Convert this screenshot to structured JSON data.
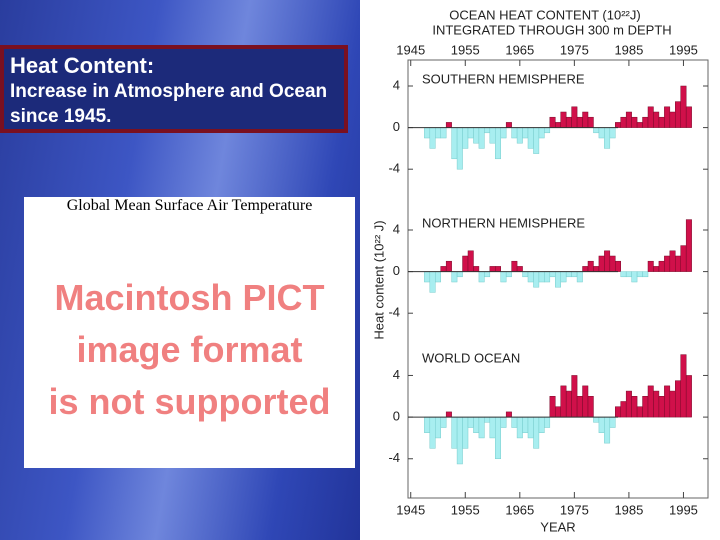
{
  "slide": {
    "heading": "Heat Content:",
    "subheading": "Increase in Atmosphere and Ocean since 1945.",
    "image_title": "Global Mean Surface Air Temperature",
    "placeholder": [
      "Macintosh PICT",
      "image format",
      "is not supported"
    ]
  },
  "chart_data": [
    {
      "type": "bar",
      "title": "OCEAN HEAT CONTENT (10²²J)",
      "subtitle": "INTEGRATED THROUGH 300 m DEPTH",
      "annotation": "SOUTHERN HEMISPHERE",
      "pos_color": "#d0104a",
      "neg_color": "#a8eef0",
      "x": [
        1948,
        1949,
        1950,
        1951,
        1952,
        1953,
        1954,
        1955,
        1956,
        1957,
        1958,
        1959,
        1960,
        1961,
        1962,
        1963,
        1964,
        1965,
        1966,
        1967,
        1968,
        1969,
        1970,
        1971,
        1972,
        1973,
        1974,
        1975,
        1976,
        1977,
        1978,
        1979,
        1980,
        1981,
        1982,
        1983,
        1984,
        1985,
        1986,
        1987,
        1988,
        1989,
        1990,
        1991,
        1992,
        1993,
        1994,
        1995,
        1996
      ],
      "values": [
        -1,
        -2,
        -1,
        -1,
        0.5,
        -3,
        -4,
        -2,
        -1,
        -1.5,
        -2,
        -0.5,
        -1.5,
        -3,
        -1,
        0.5,
        -1,
        -1.5,
        -1,
        -2,
        -2.5,
        -1,
        -0.5,
        1,
        0.5,
        1.5,
        1,
        2,
        1,
        1.5,
        1,
        -0.5,
        -1,
        -2,
        -1,
        0.5,
        1,
        1.5,
        1,
        0.5,
        1,
        2,
        1.5,
        1,
        2,
        1.5,
        2.5,
        4,
        2
      ],
      "xlim": [
        1944.5,
        1999.5
      ],
      "xticks": [
        1945,
        1955,
        1965,
        1975,
        1985,
        1995
      ],
      "ylim": [
        -6,
        6.5
      ],
      "yticks": [
        -4,
        0,
        4
      ]
    },
    {
      "type": "bar",
      "annotation": "NORTHERN HEMISPHERE",
      "ylabel": "Heat content (10²² J)",
      "pos_color": "#d0104a",
      "neg_color": "#a8eef0",
      "x": [
        1948,
        1949,
        1950,
        1951,
        1952,
        1953,
        1954,
        1955,
        1956,
        1957,
        1958,
        1959,
        1960,
        1961,
        1962,
        1963,
        1964,
        1965,
        1966,
        1967,
        1968,
        1969,
        1970,
        1971,
        1972,
        1973,
        1974,
        1975,
        1976,
        1977,
        1978,
        1979,
        1980,
        1981,
        1982,
        1983,
        1984,
        1985,
        1986,
        1987,
        1988,
        1989,
        1990,
        1991,
        1992,
        1993,
        1994,
        1995,
        1996
      ],
      "values": [
        -1,
        -2,
        -1,
        0.5,
        1,
        -1,
        -0.5,
        1.5,
        2,
        0.5,
        -1,
        -0.5,
        0.5,
        0.5,
        -1,
        -0.5,
        1,
        0.5,
        -0.5,
        -1,
        -1.5,
        -1,
        -1,
        -0.5,
        -1.5,
        -1,
        -0.5,
        -0.5,
        -1,
        0.5,
        1,
        0.5,
        1.5,
        2,
        1.5,
        1,
        -0.5,
        -0.5,
        -1,
        -0.5,
        -0.5,
        1,
        0.5,
        1,
        1.5,
        2,
        1.5,
        2.5,
        5
      ],
      "xlim": [
        1944.5,
        1999.5
      ],
      "ylim": [
        -6,
        6.5
      ],
      "yticks": [
        -4,
        0,
        4
      ]
    },
    {
      "type": "bar",
      "annotation": "WORLD OCEAN",
      "xlabel": "YEAR",
      "pos_color": "#d0104a",
      "neg_color": "#a8eef0",
      "x": [
        1948,
        1949,
        1950,
        1951,
        1952,
        1953,
        1954,
        1955,
        1956,
        1957,
        1958,
        1959,
        1960,
        1961,
        1962,
        1963,
        1964,
        1965,
        1966,
        1967,
        1968,
        1969,
        1970,
        1971,
        1972,
        1973,
        1974,
        1975,
        1976,
        1977,
        1978,
        1979,
        1980,
        1981,
        1982,
        1983,
        1984,
        1985,
        1986,
        1987,
        1988,
        1989,
        1990,
        1991,
        1992,
        1993,
        1994,
        1995,
        1996
      ],
      "values": [
        -1.5,
        -3,
        -2,
        -1,
        0.5,
        -3,
        -4.5,
        -3,
        -1,
        -1.5,
        -2,
        -0.5,
        -2,
        -4,
        -1,
        0.5,
        -1,
        -2,
        -1.5,
        -2,
        -3,
        -1.5,
        -1,
        2,
        1,
        3,
        2.5,
        4,
        2,
        3,
        2,
        -0.5,
        -1.5,
        -2.5,
        -1,
        1,
        1.5,
        2.5,
        2,
        1,
        2,
        3,
        2.5,
        2,
        3,
        2.5,
        3.5,
        6,
        4
      ],
      "xlim": [
        1944.5,
        1999.5
      ],
      "xticks": [
        1945,
        1955,
        1965,
        1975,
        1985,
        1995
      ],
      "ylim": [
        -7,
        7.5
      ],
      "yticks": [
        -4,
        0,
        4
      ]
    }
  ]
}
